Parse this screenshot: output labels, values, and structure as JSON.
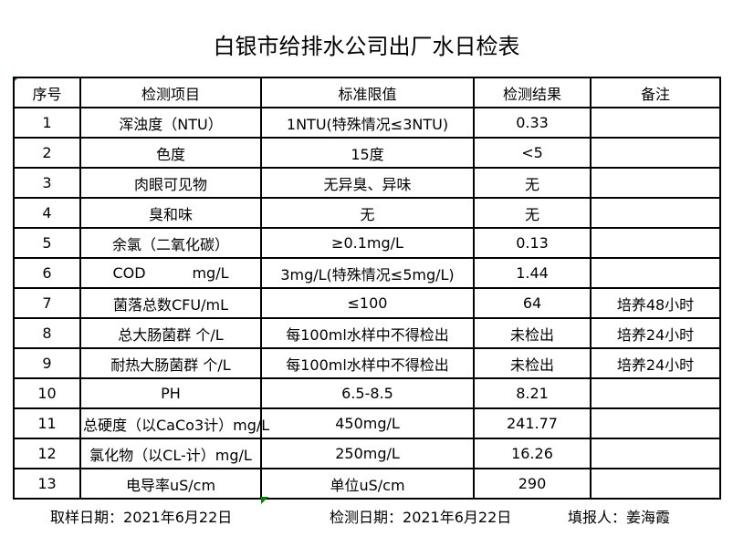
{
  "page": {
    "background": "#ffffff",
    "border_color": "#000000",
    "marker_green": "#008000"
  },
  "title": "白银市给排水公司出厂水日检表",
  "table": {
    "headers": [
      "序号",
      "检测项目",
      "标准限值",
      "检测结果",
      "备注"
    ],
    "rows": [
      {
        "seq": "1",
        "item": "浑浊度（NTU）",
        "limit": "1NTU(特殊情况≤3NTU)",
        "result": "0.33",
        "remark": ""
      },
      {
        "seq": "2",
        "item": "色度",
        "limit": "15度",
        "result": "<5",
        "remark": ""
      },
      {
        "seq": "3",
        "item": "肉眼可见物",
        "limit": "无异臭、异味",
        "result": "无",
        "remark": ""
      },
      {
        "seq": "4",
        "item": "臭和味",
        "limit": "无",
        "result": "无",
        "remark": ""
      },
      {
        "seq": "5",
        "item": "余氯（二氧化碳）",
        "limit": "≥0.1mg/L",
        "result": "0.13",
        "remark": ""
      },
      {
        "seq": "6",
        "item": "COD          mg/L",
        "limit": "3mg/L(特殊情况≤5mg/L)",
        "result": "1.44",
        "remark": ""
      },
      {
        "seq": "7",
        "item": "菌落总数CFU/mL",
        "limit": "≤100",
        "result": "64",
        "remark": "培养48小时"
      },
      {
        "seq": "8",
        "item": "总大肠菌群 个/L",
        "limit": "每100ml水样中不得检出",
        "result": "未检出",
        "remark": "培养24小时"
      },
      {
        "seq": "9",
        "item": "耐热大肠菌群 个/L",
        "limit": "每100ml水样中不得检出",
        "result": "未检出",
        "remark": "培养24小时"
      },
      {
        "seq": "10",
        "item": "PH",
        "limit": "6.5-8.5",
        "result": "8.21",
        "remark": ""
      },
      {
        "seq": "11",
        "item": "总硬度（以CaCo3计）mg/L",
        "limit": "450mg/L",
        "result": "241.77",
        "remark": ""
      },
      {
        "seq": "12",
        "item": "氯化物（以CL-计）mg/L",
        "limit": "250mg/L",
        "result": "16.26",
        "remark": ""
      },
      {
        "seq": "13",
        "item": "电导率uS/cm",
        "limit": "单位uS/cm",
        "result": "290",
        "remark": ""
      }
    ]
  },
  "footer": {
    "sampling_date_label": "取样日期：",
    "sampling_date": "2021年6月22日",
    "test_date_label": "检测日期：",
    "test_date": "2021年6月22日",
    "reporter_label": "填报人：",
    "reporter": "姜海霞"
  }
}
